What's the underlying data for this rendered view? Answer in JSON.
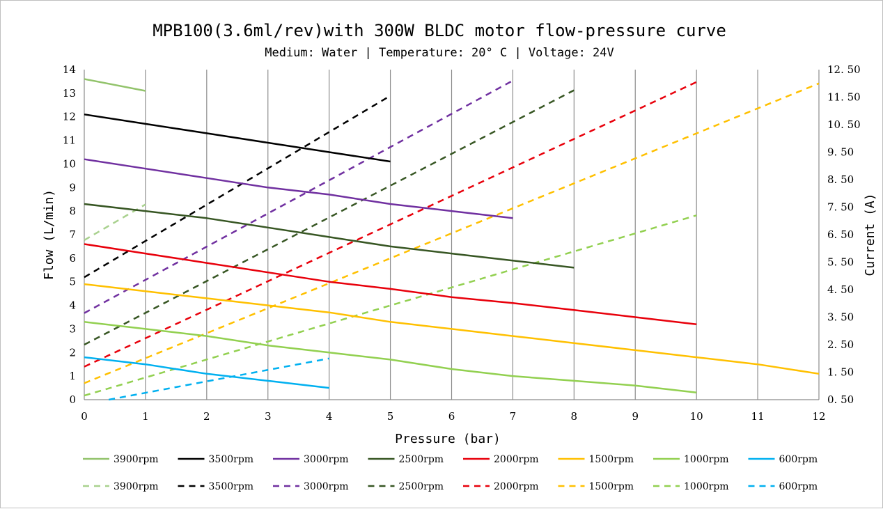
{
  "chart_data": {
    "type": "line",
    "title": "MPB100(3.6ml/rev)with 300W BLDC motor flow-pressure curve",
    "subtitle": "Medium: Water | Temperature: 20° C | Voltage: 24V",
    "xlabel": "Pressure (bar)",
    "ylabel": "Flow (L/min)",
    "y2label": "Current (A)",
    "xlim": [
      0,
      12
    ],
    "ylim": [
      0,
      14
    ],
    "y2lim": [
      0.5,
      12.5
    ],
    "x_ticks": [
      "0",
      "1",
      "2",
      "3",
      "4",
      "5",
      "6",
      "7",
      "8",
      "9",
      "10",
      "11",
      "12"
    ],
    "y_ticks": [
      "0",
      "1",
      "2",
      "3",
      "4",
      "5",
      "6",
      "7",
      "8",
      "9",
      "10",
      "11",
      "12",
      "13",
      "14"
    ],
    "y2_ticks": [
      "0. 50",
      "1. 50",
      "2. 50",
      "3. 50",
      "4. 50",
      "5. 50",
      "6. 50",
      "7. 50",
      "8. 50",
      "9. 50",
      "10. 50",
      "11. 50",
      "12. 50"
    ],
    "grid": "vertical",
    "legend_position": "bottom",
    "flow_series": [
      {
        "name": "3900rpm",
        "color": "#92c36b",
        "x": [
          0,
          1
        ],
        "y": [
          13.6,
          13.1
        ]
      },
      {
        "name": "3500rpm",
        "color": "#000000",
        "x": [
          0,
          1,
          2,
          3,
          4,
          5
        ],
        "y": [
          12.1,
          11.7,
          11.3,
          10.9,
          10.5,
          10.1
        ]
      },
      {
        "name": "3000rpm",
        "color": "#7030a0",
        "x": [
          0,
          1,
          2,
          3,
          4,
          5,
          6,
          7
        ],
        "y": [
          10.2,
          9.8,
          9.4,
          9.0,
          8.7,
          8.3,
          8.0,
          7.7
        ]
      },
      {
        "name": "2500rpm",
        "color": "#375623",
        "x": [
          0,
          1,
          2,
          3,
          4,
          5,
          6,
          7,
          8
        ],
        "y": [
          8.3,
          8.0,
          7.7,
          7.3,
          6.9,
          6.5,
          6.2,
          5.9,
          5.6
        ]
      },
      {
        "name": "2000rpm",
        "color": "#e8000b",
        "x": [
          0,
          1,
          2,
          3,
          4,
          5,
          6,
          7,
          8,
          9,
          10
        ],
        "y": [
          6.6,
          6.2,
          5.8,
          5.4,
          5.0,
          4.7,
          4.35,
          4.1,
          3.8,
          3.5,
          3.2
        ]
      },
      {
        "name": "1500rpm",
        "color": "#ffc000",
        "x": [
          0,
          1,
          2,
          3,
          4,
          5,
          6,
          7,
          8,
          9,
          10,
          11,
          12
        ],
        "y": [
          4.9,
          4.6,
          4.3,
          4.0,
          3.7,
          3.3,
          3.0,
          2.7,
          2.4,
          2.1,
          1.8,
          1.5,
          1.1
        ]
      },
      {
        "name": "1000rpm",
        "color": "#92d050",
        "x": [
          0,
          1,
          2,
          3,
          4,
          5,
          6,
          7,
          8,
          9,
          10
        ],
        "y": [
          3.3,
          3.0,
          2.7,
          2.3,
          2.0,
          1.7,
          1.3,
          1.0,
          0.8,
          0.6,
          0.3
        ]
      },
      {
        "name": "600rpm",
        "color": "#00b0f0",
        "x": [
          0,
          1,
          2,
          3,
          4
        ],
        "y": [
          1.8,
          1.5,
          1.1,
          0.8,
          0.5
        ]
      }
    ],
    "current_series": [
      {
        "name": "3900rpm",
        "color": "#a9d18e",
        "x": [
          0,
          1
        ],
        "y": [
          6.3,
          7.6
        ]
      },
      {
        "name": "3500rpm",
        "color": "#000000",
        "x": [
          0,
          5
        ],
        "y": [
          4.95,
          11.55
        ]
      },
      {
        "name": "3000rpm",
        "color": "#7030a0",
        "x": [
          0,
          7
        ],
        "y": [
          3.65,
          12.1
        ]
      },
      {
        "name": "2500rpm",
        "color": "#375623",
        "x": [
          0,
          8
        ],
        "y": [
          2.5,
          11.75
        ]
      },
      {
        "name": "2000rpm",
        "color": "#e8000b",
        "x": [
          0,
          10
        ],
        "y": [
          1.7,
          12.05
        ]
      },
      {
        "name": "1500rpm",
        "color": "#ffc000",
        "x": [
          0,
          12
        ],
        "y": [
          1.1,
          12.0
        ]
      },
      {
        "name": "1000rpm",
        "color": "#92d050",
        "x": [
          0,
          10
        ],
        "y": [
          0.65,
          7.2
        ]
      },
      {
        "name": "600rpm",
        "color": "#00b0f0",
        "x": [
          0.4,
          4
        ],
        "y": [
          0.5,
          2.0
        ]
      }
    ]
  }
}
